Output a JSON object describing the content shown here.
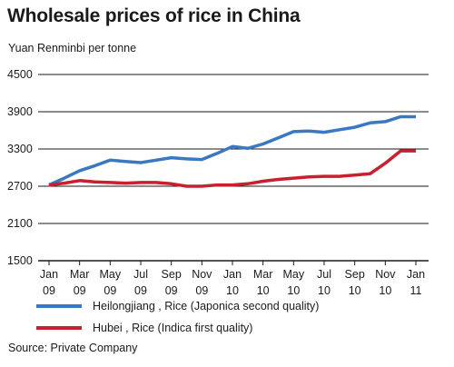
{
  "chart_data": {
    "type": "line",
    "title": "Wholesale prices of rice in China",
    "ylabel": "Yuan Renminbi per tonne",
    "ylim": [
      1500,
      4500
    ],
    "yticks": [
      "4500",
      "3900",
      "3300",
      "2700",
      "2100",
      "1500"
    ],
    "ytick_values": [
      4500,
      3900,
      3300,
      2700,
      2100,
      1500
    ],
    "xtick_labels": [
      [
        "Jan",
        "09"
      ],
      [
        "Mar",
        "09"
      ],
      [
        "May",
        "09"
      ],
      [
        "Jul",
        "09"
      ],
      [
        "Sep",
        "09"
      ],
      [
        "Nov",
        "09"
      ],
      [
        "Jan",
        "10"
      ],
      [
        "Mar",
        "10"
      ],
      [
        "May",
        "10"
      ],
      [
        "Jul",
        "10"
      ],
      [
        "Sep",
        "10"
      ],
      [
        "Nov",
        "10"
      ],
      [
        "Jan",
        "11"
      ]
    ],
    "x": [
      "Jan 09",
      "Feb 09",
      "Mar 09",
      "Apr 09",
      "May 09",
      "Jun 09",
      "Jul 09",
      "Aug 09",
      "Sep 09",
      "Oct 09",
      "Nov 09",
      "Dec 09",
      "Jan 10",
      "Feb 10",
      "Mar 10",
      "Apr 10",
      "May 10",
      "Jun 10",
      "Jul 10",
      "Aug 10",
      "Sep 10",
      "Oct 10",
      "Nov 10",
      "Dec 10",
      "Jan 11"
    ],
    "series": [
      {
        "name": "Heilongjiang , Rice (Japonica second quality)",
        "color": "#3a78c2",
        "values": [
          2720,
          2830,
          2950,
          3030,
          3120,
          3100,
          3080,
          3120,
          3160,
          3140,
          3130,
          3230,
          3340,
          3310,
          3380,
          3480,
          3580,
          3590,
          3570,
          3610,
          3650,
          3720,
          3740,
          3820,
          3820
        ]
      },
      {
        "name": "Hubei , Rice (Indica first quality)",
        "color": "#c8202e",
        "values": [
          2720,
          2750,
          2790,
          2770,
          2760,
          2750,
          2760,
          2760,
          2740,
          2700,
          2700,
          2720,
          2720,
          2740,
          2780,
          2810,
          2830,
          2850,
          2860,
          2860,
          2880,
          2900,
          3070,
          3270,
          3270
        ]
      }
    ],
    "legend_position": "bottom",
    "grid": true
  },
  "source": "Source: Private Company"
}
